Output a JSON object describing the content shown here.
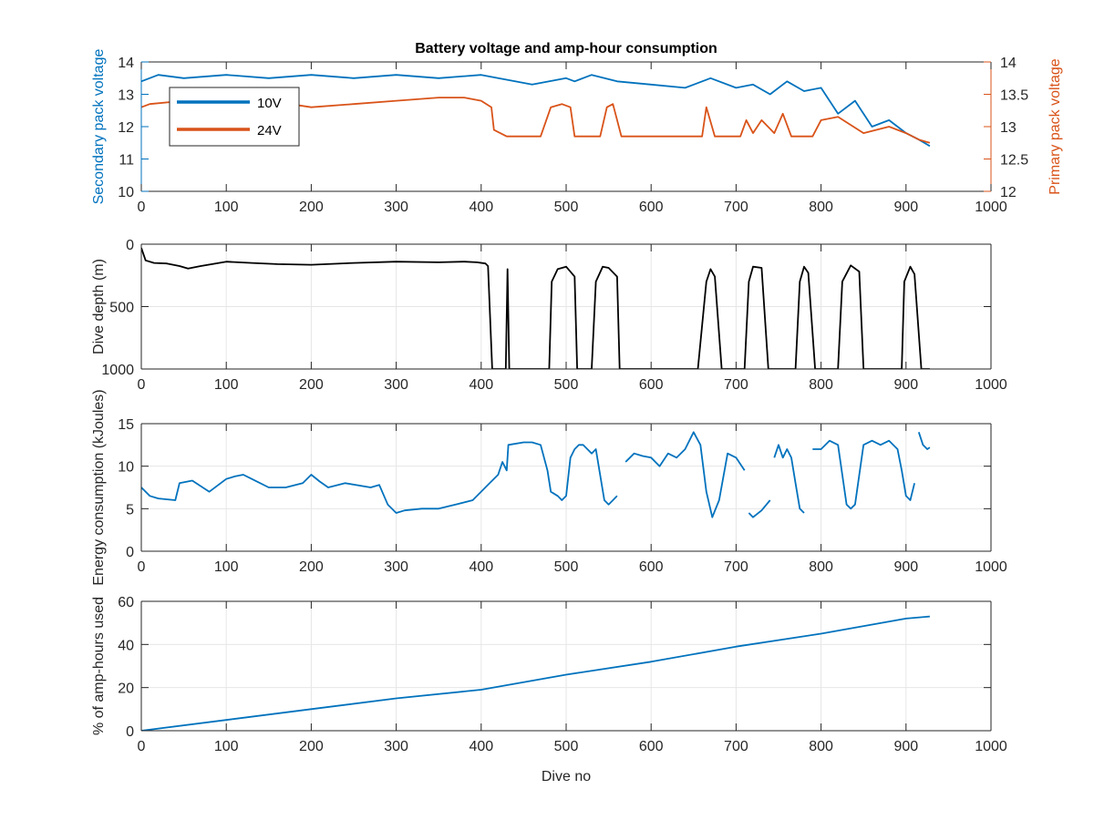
{
  "figure": {
    "title": "Battery voltage and amp-hour consumption",
    "xlabel": "Dive no",
    "colors": {
      "blue": "#0072BD",
      "orange": "#D95319",
      "black": "#000000",
      "grid": "#e6e6e6",
      "axis": "#262626"
    }
  },
  "chart_data": [
    {
      "type": "line",
      "title": "Battery voltage and amp-hour consumption",
      "xlabel": "",
      "xlim": [
        0,
        1000
      ],
      "xticks": [
        0,
        100,
        200,
        300,
        400,
        500,
        600,
        700,
        800,
        900,
        1000
      ],
      "ylabel_left": "Secondary pack voltage",
      "ylim_left": [
        10,
        14
      ],
      "yticks_left": [
        10,
        11,
        12,
        13,
        14
      ],
      "ylabel_right": "Primary pack voltage",
      "ylim_right": [
        12,
        14
      ],
      "yticks_right": [
        12,
        12.5,
        13,
        13.5,
        14
      ],
      "grid": false,
      "legend": "upper-left",
      "series": [
        {
          "name": "10V",
          "axis": "left",
          "color": "#0072BD",
          "x": [
            0,
            20,
            50,
            100,
            150,
            200,
            250,
            300,
            350,
            400,
            420,
            440,
            460,
            480,
            500,
            510,
            530,
            560,
            600,
            640,
            670,
            700,
            720,
            740,
            760,
            780,
            800,
            820,
            840,
            860,
            880,
            900,
            915,
            928
          ],
          "y": [
            13.4,
            13.6,
            13.5,
            13.6,
            13.5,
            13.6,
            13.5,
            13.6,
            13.5,
            13.6,
            13.5,
            13.4,
            13.3,
            13.4,
            13.5,
            13.4,
            13.6,
            13.4,
            13.3,
            13.2,
            13.5,
            13.2,
            13.3,
            13.0,
            13.4,
            13.1,
            13.2,
            12.4,
            12.8,
            12.0,
            12.2,
            11.8,
            11.6,
            11.4
          ]
        },
        {
          "name": "24V",
          "axis": "right",
          "color": "#D95319",
          "x": [
            0,
            10,
            50,
            100,
            150,
            200,
            250,
            300,
            350,
            380,
            400,
            412,
            415,
            430,
            470,
            482,
            495,
            505,
            510,
            515,
            540,
            548,
            555,
            565,
            600,
            630,
            640,
            660,
            665,
            675,
            690,
            705,
            712,
            720,
            730,
            745,
            755,
            765,
            790,
            800,
            820,
            850,
            880,
            900,
            915,
            928
          ],
          "y": [
            13.3,
            13.35,
            13.4,
            13.45,
            13.4,
            13.3,
            13.35,
            13.4,
            13.45,
            13.45,
            13.4,
            13.3,
            12.95,
            12.85,
            12.85,
            13.3,
            13.35,
            13.3,
            12.85,
            12.85,
            12.85,
            13.3,
            13.35,
            12.85,
            12.85,
            12.85,
            12.85,
            12.85,
            13.3,
            12.85,
            12.85,
            12.85,
            13.1,
            12.9,
            13.1,
            12.9,
            13.2,
            12.85,
            12.85,
            13.1,
            13.15,
            12.9,
            13.0,
            12.9,
            12.8,
            12.75
          ]
        }
      ]
    },
    {
      "type": "line",
      "xlabel": "",
      "xlim": [
        0,
        1000
      ],
      "xticks": [
        0,
        100,
        200,
        300,
        400,
        500,
        600,
        700,
        800,
        900,
        1000
      ],
      "ylabel": "Dive depth (m)",
      "ylim": [
        0,
        1000
      ],
      "yticks": [
        0,
        500,
        1000
      ],
      "y_reversed": true,
      "grid": true,
      "series": [
        {
          "color": "#000000",
          "x": [
            0,
            5,
            15,
            30,
            45,
            55,
            70,
            100,
            130,
            160,
            200,
            250,
            300,
            350,
            380,
            395,
            405,
            408,
            413,
            417,
            420,
            425,
            429,
            431,
            433,
            436,
            480,
            483,
            490,
            500,
            510,
            513,
            530,
            535,
            543,
            550,
            560,
            563,
            655,
            665,
            670,
            675,
            683,
            710,
            715,
            720,
            730,
            738,
            770,
            775,
            780,
            785,
            793,
            820,
            825,
            835,
            845,
            850,
            895,
            898,
            905,
            910,
            918,
            928
          ],
          "y": [
            30,
            130,
            150,
            155,
            175,
            195,
            175,
            140,
            150,
            160,
            165,
            150,
            140,
            145,
            140,
            145,
            155,
            175,
            1000,
            1000,
            1000,
            1000,
            1000,
            200,
            1000,
            1000,
            1000,
            300,
            200,
            180,
            260,
            1000,
            1000,
            300,
            180,
            190,
            260,
            1000,
            1000,
            300,
            200,
            260,
            1000,
            1000,
            300,
            180,
            190,
            1000,
            1000,
            300,
            180,
            230,
            1000,
            1000,
            300,
            170,
            220,
            1000,
            1000,
            300,
            180,
            240,
            1000,
            1000
          ]
        }
      ]
    },
    {
      "type": "line",
      "xlabel": "",
      "xlim": [
        0,
        1000
      ],
      "xticks": [
        0,
        100,
        200,
        300,
        400,
        500,
        600,
        700,
        800,
        900,
        1000
      ],
      "ylabel": "Energy consumption (kJoules)",
      "ylim": [
        0,
        15
      ],
      "yticks": [
        0,
        5,
        10,
        15
      ],
      "grid": true,
      "series": [
        {
          "color": "#0072BD",
          "segments": [
            {
              "x": [
                0,
                10,
                20,
                40,
                45,
                60,
                80,
                100,
                110,
                120,
                130,
                150,
                170,
                190,
                200,
                210,
                220,
                240,
                270,
                280,
                290,
                300,
                310,
                330,
                350,
                370,
                390,
                410,
                420,
                425,
                430,
                432,
                450,
                460,
                470,
                478,
                482,
                490,
                495,
                500,
                505,
                510,
                515,
                520,
                530,
                535,
                545,
                550,
                555,
                560
              ],
              "y": [
                7.5,
                6.5,
                6.2,
                6.0,
                8.0,
                8.3,
                7.0,
                8.5,
                8.8,
                9.0,
                8.5,
                7.5,
                7.5,
                8.0,
                9.0,
                8.2,
                7.5,
                8.0,
                7.5,
                7.8,
                5.5,
                4.5,
                4.8,
                5.0,
                5.0,
                5.5,
                6.0,
                8.0,
                9.0,
                10.5,
                9.5,
                12.5,
                12.8,
                12.8,
                12.5,
                9.5,
                7.0,
                6.5,
                6.0,
                6.5,
                11.0,
                12.0,
                12.5,
                12.5,
                11.5,
                12.0,
                6.0,
                5.5,
                6.0,
                6.5
              ]
            },
            {
              "x": [
                570,
                580,
                590,
                600,
                610,
                620,
                630,
                640,
                650,
                658,
                665,
                672,
                680,
                690,
                700,
                710
              ],
              "y": [
                10.5,
                11.5,
                11.2,
                11.0,
                10.0,
                11.5,
                11.0,
                12.0,
                14.0,
                12.5,
                7.0,
                4.0,
                6.0,
                11.5,
                11.0,
                9.5
              ]
            },
            {
              "x": [
                715,
                720,
                730,
                740
              ],
              "y": [
                4.5,
                4.0,
                4.8,
                6.0
              ]
            },
            {
              "x": [
                745,
                750,
                755,
                760,
                765,
                770,
                775,
                780
              ],
              "y": [
                11.0,
                12.5,
                11.0,
                12.0,
                11.0,
                8.0,
                5.0,
                4.5
              ]
            },
            {
              "x": [
                790,
                800,
                810,
                820,
                825,
                830,
                835,
                840,
                850,
                860,
                870,
                880,
                890,
                895,
                900,
                905,
                910
              ],
              "y": [
                12.0,
                12.0,
                13.0,
                12.5,
                9.0,
                5.5,
                5.0,
                5.5,
                12.5,
                13.0,
                12.5,
                13.0,
                12.0,
                9.5,
                6.5,
                6.0,
                8.0
              ]
            },
            {
              "x": [
                915,
                920,
                925,
                928
              ],
              "y": [
                14.0,
                12.5,
                12.0,
                12.2
              ]
            }
          ]
        }
      ]
    },
    {
      "type": "line",
      "xlabel": "Dive no",
      "xlim": [
        0,
        1000
      ],
      "xticks": [
        0,
        100,
        200,
        300,
        400,
        500,
        600,
        700,
        800,
        900,
        1000
      ],
      "ylabel": "% of amp-hours used",
      "ylim": [
        0,
        60
      ],
      "yticks": [
        0,
        20,
        40,
        60
      ],
      "grid": true,
      "series": [
        {
          "color": "#0072BD",
          "x": [
            0,
            100,
            200,
            300,
            400,
            500,
            600,
            700,
            800,
            900,
            928
          ],
          "y": [
            0,
            5,
            10,
            15,
            19,
            26,
            32,
            39,
            45,
            52,
            53
          ]
        }
      ]
    }
  ]
}
